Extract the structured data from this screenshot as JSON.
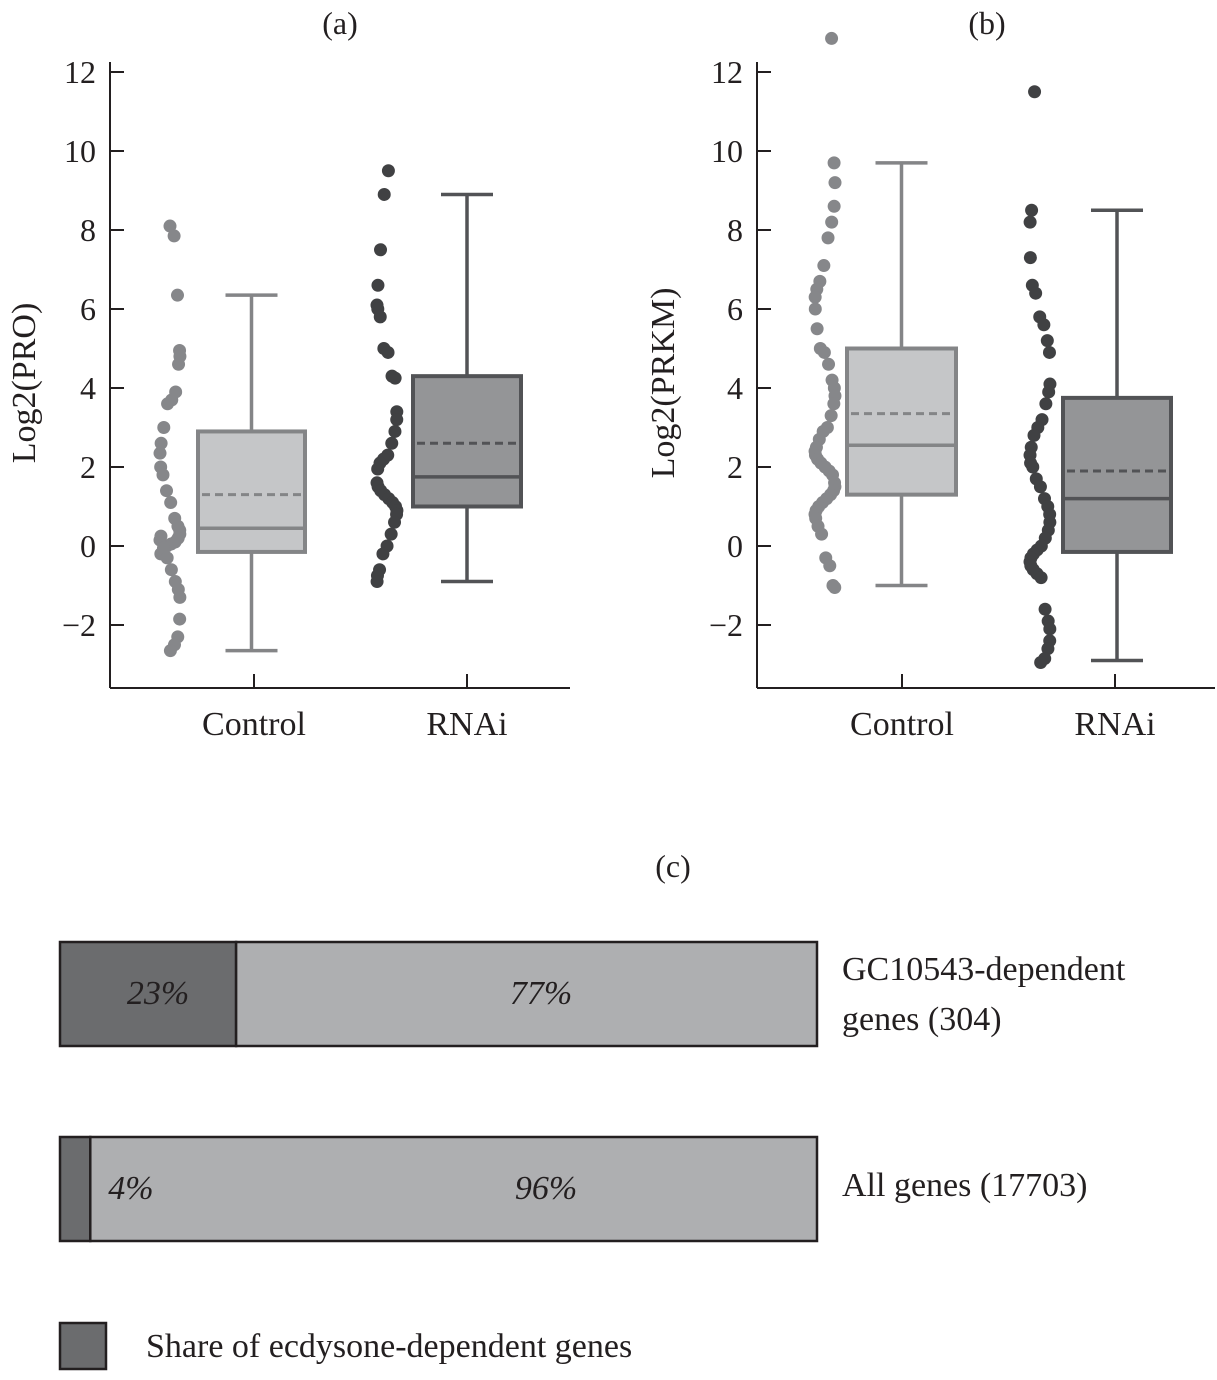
{
  "chart_data": [
    {
      "type": "box",
      "panel_label": "(a)",
      "ylabel": "Log2(PRO)",
      "ylim": [
        -3.5,
        12
      ],
      "yticks": [
        12,
        10,
        8,
        6,
        4,
        2,
        0,
        -2
      ],
      "ytick_labels": [
        "12",
        "10",
        "8",
        "6",
        "4",
        "2",
        "0",
        "−2"
      ],
      "categories": [
        "Control",
        "RNAi"
      ],
      "series": [
        {
          "category": "Control",
          "q1": -0.15,
          "median": 0.45,
          "q3": 2.9,
          "mean": 1.3,
          "whisker_low": -2.65,
          "whisker_high": 6.35,
          "points": [
            8.1,
            7.85,
            6.35,
            4.95,
            4.8,
            4.6,
            3.9,
            3.7,
            3.6,
            3.0,
            2.6,
            2.35,
            2.0,
            1.8,
            1.4,
            1.1,
            0.7,
            0.5,
            0.4,
            0.3,
            0.2,
            0.1,
            0.05,
            0,
            -0.1,
            -0.2,
            0.15,
            0.25,
            -0.05,
            -0.3,
            -0.6,
            -0.9,
            -1.1,
            -1.3,
            -1.85,
            -2.3,
            -2.5,
            -2.65
          ]
        },
        {
          "category": "RNAi",
          "q1": 1.0,
          "median": 1.75,
          "q3": 4.3,
          "mean": 2.6,
          "whisker_low": -0.9,
          "whisker_high": 8.9,
          "points": [
            9.5,
            8.9,
            7.5,
            6.6,
            6.1,
            6.0,
            5.8,
            5.0,
            4.9,
            4.3,
            4.25,
            3.4,
            3.2,
            2.9,
            2.6,
            2.3,
            2.2,
            2.1,
            1.95,
            1.6,
            1.5,
            1.4,
            1.3,
            1.2,
            1.1,
            1.0,
            0.9,
            0.8,
            0.6,
            0.3,
            0.0,
            -0.2,
            -0.6,
            -0.75,
            -0.9
          ]
        }
      ]
    },
    {
      "type": "box",
      "panel_label": "(b)",
      "ylabel": "Log2(PRKM)",
      "ylim": [
        -3.5,
        12
      ],
      "yticks": [
        12,
        10,
        8,
        6,
        4,
        2,
        0,
        -2
      ],
      "ytick_labels": [
        "12",
        "10",
        "8",
        "6",
        "4",
        "2",
        "0",
        "−2"
      ],
      "categories": [
        "Control",
        "RNAi"
      ],
      "series": [
        {
          "category": "Control",
          "q1": 1.3,
          "median": 2.55,
          "q3": 5.0,
          "mean": 3.35,
          "whisker_low": -1.0,
          "whisker_high": 9.7,
          "points": [
            12.85,
            9.7,
            9.2,
            8.6,
            8.2,
            7.8,
            7.1,
            6.7,
            6.5,
            6.3,
            6.0,
            5.5,
            5.0,
            4.9,
            4.6,
            4.2,
            4.0,
            3.8,
            3.6,
            3.3,
            3.0,
            2.9,
            2.7,
            2.5,
            2.4,
            2.3,
            2.2,
            2.1,
            2.0,
            1.9,
            1.8,
            1.6,
            1.5,
            1.4,
            1.3,
            1.2,
            1.1,
            1.0,
            0.9,
            0.8,
            0.7,
            0.5,
            0.3,
            -0.3,
            -0.5,
            -1.0,
            -1.05
          ]
        },
        {
          "category": "RNAi",
          "q1": -0.15,
          "median": 1.2,
          "q3": 3.75,
          "mean": 1.9,
          "whisker_low": -2.9,
          "whisker_high": 8.5,
          "points": [
            11.5,
            8.5,
            8.2,
            7.3,
            6.6,
            6.4,
            5.8,
            5.6,
            5.2,
            4.9,
            4.1,
            3.9,
            3.6,
            3.2,
            3.0,
            2.8,
            2.5,
            2.3,
            2.1,
            2.0,
            1.7,
            1.5,
            1.2,
            1.0,
            0.8,
            0.6,
            0.4,
            0.2,
            0.0,
            -0.1,
            -0.2,
            -0.3,
            -0.4,
            -0.5,
            -0.6,
            -0.7,
            -0.8,
            -1.6,
            -1.9,
            -2.1,
            -2.4,
            -2.6,
            -2.85,
            -2.95
          ]
        }
      ]
    },
    {
      "type": "stacked_bar",
      "panel_label": "(c)",
      "orientation": "horizontal",
      "bars": [
        {
          "label_line1": "GC10543-dependent",
          "label_line2": "genes (304)",
          "dark": 23,
          "light": 77,
          "dark_label": "23%",
          "light_label": "77%"
        },
        {
          "label_line1": "All genes (17703)",
          "label_line2": "",
          "dark": 4,
          "light": 96,
          "dark_label": "4%",
          "light_label": "96%"
        }
      ],
      "legend": [
        {
          "label": "Share of ecdysone-dependent genes",
          "color": "#6b6c6e"
        }
      ],
      "legend_placement": "bottom-left"
    }
  ],
  "colors": {
    "control_fill": "#c5c6c8",
    "control_stroke": "#848587",
    "control_point": "#86878a",
    "rnai_fill": "#949597",
    "rnai_stroke": "#525356",
    "rnai_point": "#404143",
    "bar_dark": "#6b6c6e",
    "bar_light": "#aeafb1",
    "axis": "#231f20"
  }
}
